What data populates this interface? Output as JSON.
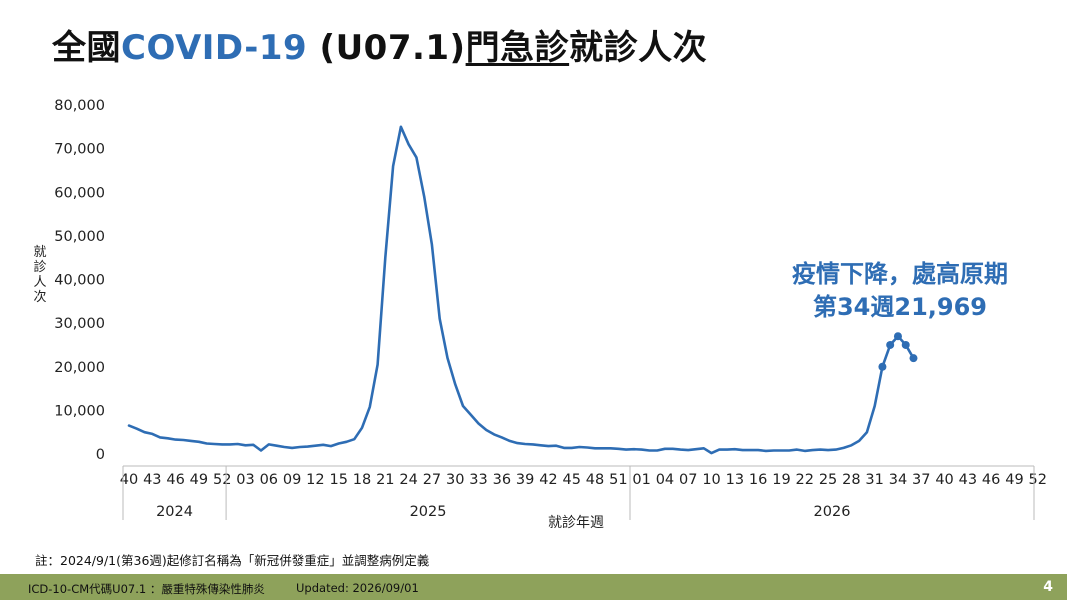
{
  "title": {
    "prefix": "全國",
    "accent": "COVID-19",
    "middle": " (U07.1)",
    "underlined": "門急診",
    "suffix": "就診人次"
  },
  "annotation": {
    "line1": "疫情下降，處高原期",
    "line2": "第34週21,969"
  },
  "note": "註：2024/9/1(第36週)起修訂名稱為「新冠併發重症」並調整病例定義",
  "footer": {
    "left": "ICD-10-CM代碼U07.1 ：嚴重特殊傳染性肺炎",
    "updated": "Updated: 2026/09/01",
    "page": "4"
  },
  "colors": {
    "line": "#2e6db4",
    "accent": "#2e6db4",
    "footer": "#8ea25b"
  },
  "chart_data": {
    "type": "line",
    "ylabel": "就診人次",
    "xlabel": "就診年週",
    "ylim": [
      0,
      80000
    ],
    "y_ticks": [
      "0",
      "10,000",
      "20,000",
      "30,000",
      "40,000",
      "50,000",
      "60,000",
      "70,000",
      "80,000"
    ],
    "x_tick_labels": [
      "40",
      "43",
      "46",
      "49",
      "52",
      "03",
      "06",
      "09",
      "12",
      "15",
      "18",
      "21",
      "24",
      "27",
      "30",
      "33",
      "36",
      "39",
      "42",
      "45",
      "48",
      "51",
      "01",
      "04",
      "07",
      "10",
      "13",
      "16",
      "19",
      "22",
      "25",
      "28",
      "31",
      "34",
      "37",
      "40",
      "43",
      "46",
      "49",
      "52"
    ],
    "year_groups": [
      {
        "year": "2024",
        "weeks": 13
      },
      {
        "year": "2025",
        "weeks": 52
      },
      {
        "year": "2026",
        "weeks": 52
      }
    ],
    "grid": false,
    "series": [
      {
        "values": [
          6500,
          5800,
          5000,
          4600,
          3800,
          3600,
          3300,
          3200,
          3000,
          2800,
          2400,
          2300,
          2200,
          2200,
          2300,
          2000,
          2100,
          800,
          2200,
          1900,
          1600,
          1400,
          1600,
          1700,
          1900,
          2100,
          1800,
          2400,
          2800,
          3400,
          6000,
          10800,
          20500,
          45000,
          66000,
          75000,
          71000,
          68000,
          59000,
          48000,
          31000,
          22000,
          16000,
          11000,
          9000,
          7000,
          5500,
          4500,
          3800,
          3000,
          2500,
          2300,
          2200,
          2000,
          1800,
          1900,
          1400,
          1400,
          1600,
          1500,
          1300,
          1300,
          1300,
          1200,
          1000,
          1100,
          1000,
          800,
          800,
          1200,
          1200,
          1000,
          900,
          1100,
          1300,
          200,
          1000,
          1000,
          1100,
          900,
          900,
          900,
          700,
          800,
          800,
          800,
          1000,
          700,
          900,
          1000,
          900,
          1000,
          1400,
          2000,
          3000,
          5000,
          11000,
          20000,
          25000,
          27000,
          25000,
          21969
        ],
        "highlight_last": 5
      }
    ]
  }
}
